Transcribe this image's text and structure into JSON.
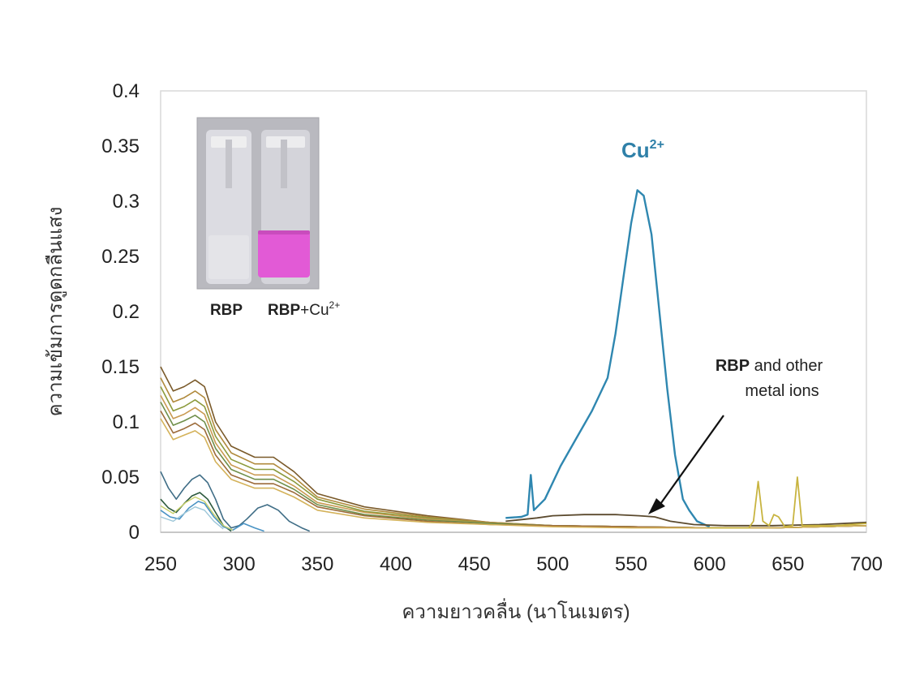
{
  "chart_data": {
    "type": "line",
    "title": "",
    "xlabel": "ความยาวคลื่น (นาโนเมตร)",
    "ylabel": "ความเข้มการดูดกลืนแสง",
    "xlim": [
      250,
      700
    ],
    "ylim": [
      0,
      0.4
    ],
    "x_ticks": [
      "250",
      "300",
      "350",
      "400",
      "450",
      "500",
      "550",
      "600",
      "650",
      "700"
    ],
    "y_ticks": [
      "0",
      "0.05",
      "0.1",
      "0.15",
      "0.2",
      "0.25",
      "0.3",
      "0.35",
      "0.4"
    ],
    "grid": false,
    "series": [
      {
        "name": "Cu²⁺",
        "color": "#2f87b0",
        "width": 2.4,
        "points": [
          [
            470,
            0.013
          ],
          [
            480,
            0.014
          ],
          [
            484,
            0.016
          ],
          [
            486,
            0.052
          ],
          [
            488,
            0.02
          ],
          [
            495,
            0.03
          ],
          [
            505,
            0.06
          ],
          [
            515,
            0.085
          ],
          [
            525,
            0.11
          ],
          [
            535,
            0.14
          ],
          [
            540,
            0.18
          ],
          [
            545,
            0.23
          ],
          [
            550,
            0.28
          ],
          [
            554,
            0.31
          ],
          [
            558,
            0.305
          ],
          [
            563,
            0.27
          ],
          [
            568,
            0.2
          ],
          [
            573,
            0.13
          ],
          [
            578,
            0.07
          ],
          [
            583,
            0.03
          ],
          [
            587,
            0.02
          ],
          [
            592,
            0.01
          ],
          [
            600,
            0.005
          ]
        ]
      },
      {
        "color": "#7a5a2a",
        "width": 1.6,
        "points": [
          [
            250,
            0.15
          ],
          [
            258,
            0.128
          ],
          [
            265,
            0.132
          ],
          [
            272,
            0.138
          ],
          [
            278,
            0.132
          ],
          [
            285,
            0.1
          ],
          [
            295,
            0.078
          ],
          [
            310,
            0.068
          ],
          [
            322,
            0.068
          ],
          [
            335,
            0.055
          ],
          [
            350,
            0.035
          ],
          [
            380,
            0.023
          ],
          [
            420,
            0.015
          ],
          [
            460,
            0.009
          ],
          [
            500,
            0.006
          ],
          [
            550,
            0.005
          ],
          [
            600,
            0.004
          ],
          [
            640,
            0.004
          ],
          [
            700,
            0.006
          ]
        ]
      },
      {
        "color": "#b08a3c",
        "width": 1.6,
        "points": [
          [
            250,
            0.14
          ],
          [
            258,
            0.118
          ],
          [
            265,
            0.122
          ],
          [
            272,
            0.128
          ],
          [
            278,
            0.122
          ],
          [
            285,
            0.093
          ],
          [
            295,
            0.072
          ],
          [
            310,
            0.062
          ],
          [
            322,
            0.062
          ],
          [
            335,
            0.05
          ],
          [
            350,
            0.032
          ],
          [
            380,
            0.021
          ],
          [
            420,
            0.014
          ],
          [
            460,
            0.009
          ],
          [
            500,
            0.006
          ],
          [
            550,
            0.005
          ],
          [
            600,
            0.004
          ],
          [
            640,
            0.004
          ],
          [
            700,
            0.006
          ]
        ]
      },
      {
        "color": "#8c9a3c",
        "width": 1.6,
        "points": [
          [
            250,
            0.132
          ],
          [
            258,
            0.11
          ],
          [
            265,
            0.114
          ],
          [
            272,
            0.12
          ],
          [
            278,
            0.114
          ],
          [
            285,
            0.087
          ],
          [
            295,
            0.066
          ],
          [
            310,
            0.057
          ],
          [
            322,
            0.057
          ],
          [
            335,
            0.046
          ],
          [
            350,
            0.03
          ],
          [
            380,
            0.019
          ],
          [
            420,
            0.013
          ],
          [
            460,
            0.008
          ],
          [
            500,
            0.006
          ],
          [
            550,
            0.005
          ],
          [
            600,
            0.004
          ],
          [
            640,
            0.004
          ],
          [
            700,
            0.006
          ]
        ]
      },
      {
        "color": "#c99a52",
        "width": 1.6,
        "points": [
          [
            250,
            0.124
          ],
          [
            258,
            0.103
          ],
          [
            265,
            0.107
          ],
          [
            272,
            0.113
          ],
          [
            278,
            0.107
          ],
          [
            285,
            0.081
          ],
          [
            295,
            0.061
          ],
          [
            310,
            0.052
          ],
          [
            322,
            0.052
          ],
          [
            335,
            0.042
          ],
          [
            350,
            0.027
          ],
          [
            380,
            0.018
          ],
          [
            420,
            0.012
          ],
          [
            460,
            0.008
          ],
          [
            500,
            0.006
          ],
          [
            550,
            0.005
          ],
          [
            600,
            0.004
          ],
          [
            640,
            0.004
          ],
          [
            700,
            0.006
          ]
        ]
      },
      {
        "color": "#6f8f4a",
        "width": 1.6,
        "points": [
          [
            250,
            0.118
          ],
          [
            258,
            0.097
          ],
          [
            265,
            0.101
          ],
          [
            272,
            0.106
          ],
          [
            278,
            0.1
          ],
          [
            285,
            0.076
          ],
          [
            295,
            0.057
          ],
          [
            310,
            0.048
          ],
          [
            322,
            0.048
          ],
          [
            335,
            0.039
          ],
          [
            350,
            0.025
          ],
          [
            380,
            0.016
          ],
          [
            420,
            0.011
          ],
          [
            460,
            0.008
          ],
          [
            500,
            0.006
          ],
          [
            550,
            0.005
          ],
          [
            600,
            0.004
          ],
          [
            640,
            0.004
          ],
          [
            700,
            0.006
          ]
        ]
      },
      {
        "color": "#9c6b3a",
        "width": 1.6,
        "points": [
          [
            250,
            0.11
          ],
          [
            258,
            0.09
          ],
          [
            265,
            0.094
          ],
          [
            272,
            0.099
          ],
          [
            278,
            0.093
          ],
          [
            285,
            0.07
          ],
          [
            295,
            0.052
          ],
          [
            310,
            0.044
          ],
          [
            322,
            0.044
          ],
          [
            335,
            0.036
          ],
          [
            350,
            0.023
          ],
          [
            380,
            0.015
          ],
          [
            420,
            0.01
          ],
          [
            460,
            0.007
          ],
          [
            500,
            0.006
          ],
          [
            550,
            0.005
          ],
          [
            600,
            0.004
          ],
          [
            640,
            0.004
          ],
          [
            700,
            0.006
          ]
        ]
      },
      {
        "color": "#d4b25a",
        "width": 1.6,
        "points": [
          [
            250,
            0.103
          ],
          [
            258,
            0.084
          ],
          [
            265,
            0.088
          ],
          [
            272,
            0.092
          ],
          [
            278,
            0.086
          ],
          [
            285,
            0.064
          ],
          [
            295,
            0.048
          ],
          [
            310,
            0.04
          ],
          [
            322,
            0.04
          ],
          [
            335,
            0.032
          ],
          [
            350,
            0.02
          ],
          [
            380,
            0.013
          ],
          [
            420,
            0.009
          ],
          [
            460,
            0.007
          ],
          [
            500,
            0.005
          ],
          [
            550,
            0.004
          ],
          [
            600,
            0.004
          ],
          [
            640,
            0.004
          ],
          [
            700,
            0.006
          ]
        ]
      },
      {
        "color": "#5b4a2e",
        "width": 1.8,
        "points": [
          [
            470,
            0.01
          ],
          [
            490,
            0.013
          ],
          [
            500,
            0.015
          ],
          [
            520,
            0.016
          ],
          [
            540,
            0.016
          ],
          [
            555,
            0.015
          ],
          [
            565,
            0.014
          ],
          [
            575,
            0.01
          ],
          [
            590,
            0.007
          ],
          [
            610,
            0.006
          ],
          [
            640,
            0.006
          ],
          [
            670,
            0.007
          ],
          [
            700,
            0.009
          ]
        ]
      },
      {
        "color": "#c8b440",
        "width": 1.8,
        "points": [
          [
            600,
            0.004
          ],
          [
            625,
            0.004
          ],
          [
            628,
            0.01
          ],
          [
            631,
            0.046
          ],
          [
            634,
            0.01
          ],
          [
            638,
            0.006
          ],
          [
            641,
            0.016
          ],
          [
            644,
            0.014
          ],
          [
            648,
            0.005
          ],
          [
            653,
            0.006
          ],
          [
            656,
            0.05
          ],
          [
            659,
            0.006
          ],
          [
            665,
            0.006
          ],
          [
            680,
            0.006
          ],
          [
            700,
            0.008
          ]
        ]
      },
      {
        "color": "#3f6d86",
        "width": 1.6,
        "points": [
          [
            250,
            0.055
          ],
          [
            255,
            0.04
          ],
          [
            260,
            0.03
          ],
          [
            265,
            0.04
          ],
          [
            270,
            0.048
          ],
          [
            275,
            0.052
          ],
          [
            280,
            0.045
          ],
          [
            285,
            0.03
          ],
          [
            290,
            0.012
          ],
          [
            295,
            0.004
          ],
          [
            300,
            0.006
          ],
          [
            305,
            0.012
          ],
          [
            312,
            0.022
          ],
          [
            318,
            0.025
          ],
          [
            325,
            0.02
          ],
          [
            332,
            0.01
          ],
          [
            340,
            0.004
          ],
          [
            345,
            0.001
          ]
        ]
      },
      {
        "color": "#2d5a3e",
        "width": 1.6,
        "points": [
          [
            250,
            0.03
          ],
          [
            255,
            0.022
          ],
          [
            260,
            0.018
          ],
          [
            265,
            0.026
          ],
          [
            270,
            0.033
          ],
          [
            275,
            0.036
          ],
          [
            280,
            0.03
          ],
          [
            285,
            0.018
          ],
          [
            290,
            0.006
          ],
          [
            295,
            0.001
          ]
        ]
      },
      {
        "color": "#4a93c4",
        "width": 1.6,
        "points": [
          [
            250,
            0.02
          ],
          [
            256,
            0.014
          ],
          [
            262,
            0.012
          ],
          [
            268,
            0.022
          ],
          [
            274,
            0.028
          ],
          [
            278,
            0.026
          ],
          [
            284,
            0.014
          ],
          [
            290,
            0.005
          ],
          [
            296,
            0.002
          ],
          [
            303,
            0.008
          ],
          [
            310,
            0.004
          ],
          [
            316,
            0.001
          ]
        ]
      },
      {
        "color": "#9cc6d8",
        "width": 1.4,
        "points": [
          [
            250,
            0.014
          ],
          [
            258,
            0.01
          ],
          [
            266,
            0.018
          ],
          [
            272,
            0.023
          ],
          [
            278,
            0.02
          ],
          [
            284,
            0.01
          ],
          [
            290,
            0.003
          ]
        ]
      },
      {
        "color": "#c7d06a",
        "width": 1.4,
        "points": [
          [
            250,
            0.024
          ],
          [
            258,
            0.017
          ],
          [
            266,
            0.027
          ],
          [
            272,
            0.032
          ],
          [
            278,
            0.028
          ],
          [
            284,
            0.016
          ],
          [
            290,
            0.006
          ],
          [
            296,
            0.002
          ]
        ]
      }
    ],
    "annotations": {
      "cu_label": "Cu",
      "cu_sup": "2+",
      "rbp_line1_bold": "RBP",
      "rbp_line1_rest": " and other",
      "rbp_line2": "metal ions"
    },
    "inset": {
      "label_left": "RBP",
      "label_right_bold": "RBP",
      "label_right_rest": "+Cu",
      "label_right_sup": "2+",
      "liquid_colors": [
        "#e4e4e8",
        "#e25ad6"
      ]
    }
  }
}
